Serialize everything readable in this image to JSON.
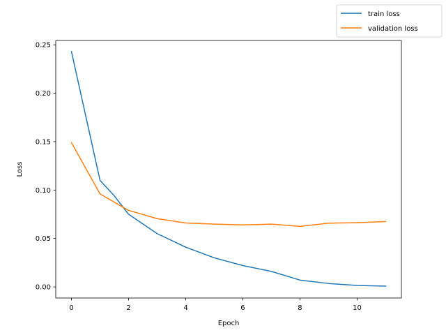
{
  "chart_data": {
    "type": "line",
    "title": "",
    "xlabel": "Epoch",
    "ylabel": "Loss",
    "xlim": [
      -0.55,
      11.55
    ],
    "ylim": [
      -0.0115,
      0.2545
    ],
    "xticks": [
      0,
      2,
      4,
      6,
      8,
      10
    ],
    "xtick_labels": [
      "0",
      "2",
      "4",
      "6",
      "8",
      "10"
    ],
    "yticks": [
      0.0,
      0.05,
      0.1,
      0.15,
      0.2,
      0.25
    ],
    "ytick_labels": [
      "0.00",
      "0.05",
      "0.10",
      "0.15",
      "0.20",
      "0.25"
    ],
    "grid": false,
    "legend_position": "top-right outside",
    "series": [
      {
        "name": "train loss",
        "color": "#1f77b4",
        "x": [
          0,
          1,
          1.5,
          2,
          3,
          4,
          5,
          6,
          7,
          8,
          9,
          10,
          11
        ],
        "y": [
          0.243,
          0.11,
          0.094,
          0.075,
          0.055,
          0.041,
          0.03,
          0.022,
          0.016,
          0.007,
          0.0035,
          0.0015,
          0.0008
        ]
      },
      {
        "name": "validation loss",
        "color": "#ff7f0e",
        "x": [
          0,
          1,
          2,
          3,
          4,
          5,
          6,
          7,
          8,
          9,
          10,
          11
        ],
        "y": [
          0.149,
          0.096,
          0.079,
          0.0705,
          0.066,
          0.0648,
          0.064,
          0.0648,
          0.0625,
          0.0658,
          0.0663,
          0.0675
        ]
      }
    ]
  }
}
